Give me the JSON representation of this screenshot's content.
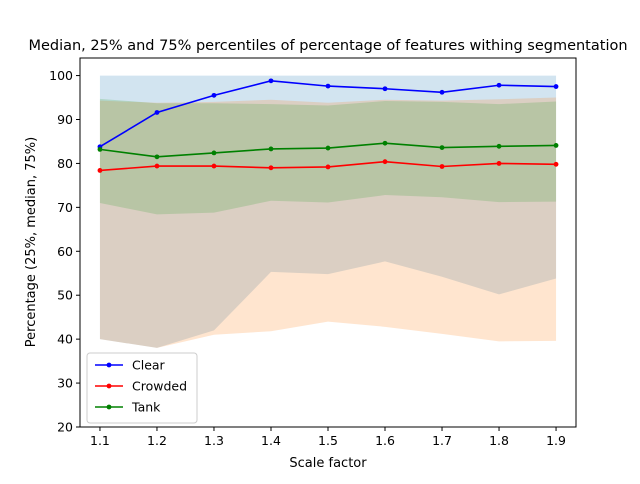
{
  "chart_data": {
    "type": "line",
    "title": "Median, 25% and 75% percentiles of percentage of features withing segmentation",
    "xlabel": "Scale factor",
    "ylabel": "Percentage (25%, median, 75%)",
    "xlim": [
      1.065,
      1.935
    ],
    "ylim": [
      20,
      104
    ],
    "x": [
      1.1,
      1.2,
      1.3,
      1.4,
      1.5,
      1.6,
      1.7,
      1.8,
      1.9
    ],
    "x_ticks": [
      "1.1",
      "1.2",
      "1.3",
      "1.4",
      "1.5",
      "1.6",
      "1.7",
      "1.8",
      "1.9"
    ],
    "y_ticks": [
      20,
      30,
      40,
      50,
      60,
      70,
      80,
      90,
      100
    ],
    "grid": false,
    "legend": "lower-left",
    "series": [
      {
        "name": "Clear",
        "color": "#0000ff",
        "band_color": "#1f77b4",
        "median": [
          83.8,
          91.6,
          95.5,
          98.8,
          97.6,
          97.0,
          96.2,
          97.8,
          97.5
        ],
        "q25": [
          40.0,
          38.0,
          42.0,
          55.3,
          54.8,
          57.7,
          54.2,
          50.2,
          53.8
        ],
        "q75": [
          100,
          100,
          100,
          100,
          100,
          100,
          100,
          100,
          100
        ]
      },
      {
        "name": "Crowded",
        "color": "#ff0000",
        "band_color": "#ff7f0e",
        "median": [
          78.4,
          79.4,
          79.4,
          79.0,
          79.2,
          80.4,
          79.3,
          80.0,
          79.8
        ],
        "q25": [
          40.0,
          38.0,
          41.0,
          41.8,
          44.0,
          42.8,
          41.2,
          39.5,
          39.6
        ],
        "q75": [
          94.3,
          93.8,
          94.0,
          94.5,
          93.8,
          94.5,
          94.3,
          94.6,
          95.0
        ]
      },
      {
        "name": "Tank",
        "color": "#008000",
        "band_color": "#2ca02c",
        "median": [
          83.2,
          81.5,
          82.4,
          83.3,
          83.5,
          84.6,
          83.6,
          83.9,
          84.1
        ],
        "q25": [
          71.0,
          68.4,
          68.8,
          71.5,
          71.1,
          72.8,
          72.3,
          71.2,
          71.3
        ],
        "q75": [
          94.7,
          93.7,
          93.7,
          93.5,
          93.2,
          94.2,
          94.0,
          93.5,
          94.1
        ]
      }
    ]
  }
}
